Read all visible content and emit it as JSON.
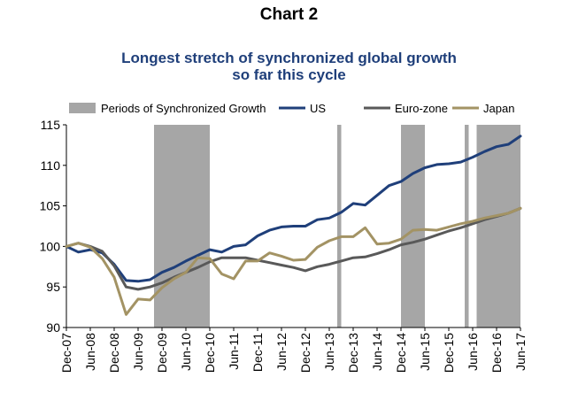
{
  "chart_label": "Chart 2",
  "chart_data": {
    "type": "line",
    "title": "Longest stretch of synchronized global growth",
    "subtitle": "so far this cycle",
    "xlabel": "",
    "ylabel": "",
    "ylim": [
      90,
      115
    ],
    "yticks": [
      90,
      95,
      100,
      105,
      110,
      115
    ],
    "grid": false,
    "legend_position": "top",
    "x_tick_labels": [
      "Dec-07",
      "Jun-08",
      "Dec-08",
      "Jun-09",
      "Dec-09",
      "Jun-10",
      "Dec-10",
      "Jun-11",
      "Dec-11",
      "Jun-12",
      "Dec-12",
      "Jun-13",
      "Dec-13",
      "Jun-14",
      "Dec-14",
      "Jun-15",
      "Dec-15",
      "Jun-16",
      "Dec-16",
      "Jun-17"
    ],
    "x": [
      "Dec-07",
      "Mar-08",
      "Jun-08",
      "Sep-08",
      "Dec-08",
      "Mar-09",
      "Jun-09",
      "Sep-09",
      "Dec-09",
      "Mar-10",
      "Jun-10",
      "Sep-10",
      "Dec-10",
      "Mar-11",
      "Jun-11",
      "Sep-11",
      "Dec-11",
      "Mar-12",
      "Jun-12",
      "Sep-12",
      "Dec-12",
      "Mar-13",
      "Jun-13",
      "Sep-13",
      "Dec-13",
      "Mar-14",
      "Jun-14",
      "Sep-14",
      "Dec-14",
      "Mar-15",
      "Jun-15",
      "Sep-15",
      "Dec-15",
      "Mar-16",
      "Jun-16",
      "Sep-16",
      "Dec-16",
      "Mar-17",
      "Jun-17"
    ],
    "shaded_periods": {
      "name": "Periods of Synchronized Growth",
      "color": "#a6a6a6",
      "ranges": [
        [
          "Oct-09",
          "Dec-10"
        ],
        [
          "Aug-13",
          "Sep-13"
        ],
        [
          "Dec-14",
          "Jun-15"
        ],
        [
          "Apr-16",
          "May-16"
        ],
        [
          "Jul-16",
          "Jun-17"
        ]
      ]
    },
    "series": [
      {
        "name": "US",
        "color": "#1f3f7a",
        "values": [
          100.0,
          99.3,
          99.6,
          99.2,
          97.8,
          95.8,
          95.7,
          95.9,
          96.8,
          97.4,
          98.2,
          98.9,
          99.6,
          99.3,
          100.0,
          100.2,
          101.3,
          102.0,
          102.4,
          102.5,
          102.5,
          103.3,
          103.5,
          104.2,
          105.3,
          105.1,
          106.3,
          107.5,
          108.0,
          109.0,
          109.7,
          110.1,
          110.2,
          110.4,
          111.0,
          111.7,
          112.3,
          112.6,
          113.6
        ]
      },
      {
        "name": "Euro-zone",
        "color": "#595959",
        "values": [
          100.0,
          100.4,
          100.0,
          99.4,
          97.6,
          95.0,
          94.7,
          95.0,
          95.5,
          96.2,
          96.8,
          97.4,
          98.1,
          98.6,
          98.6,
          98.6,
          98.3,
          98.0,
          97.7,
          97.4,
          97.0,
          97.5,
          97.8,
          98.2,
          98.6,
          98.7,
          99.1,
          99.6,
          100.2,
          100.5,
          100.9,
          101.4,
          101.9,
          102.3,
          102.8,
          103.3,
          103.7,
          104.1,
          104.7
        ]
      },
      {
        "name": "Japan",
        "color": "#a39364",
        "values": [
          100.0,
          100.4,
          99.9,
          98.5,
          96.2,
          91.6,
          93.5,
          93.4,
          94.9,
          96.0,
          96.8,
          98.6,
          98.5,
          96.6,
          96.0,
          98.2,
          98.2,
          99.2,
          98.8,
          98.3,
          98.4,
          99.9,
          100.7,
          101.2,
          101.2,
          102.3,
          100.3,
          100.4,
          100.9,
          102.0,
          102.1,
          102.0,
          102.4,
          102.8,
          103.1,
          103.5,
          103.8,
          104.1,
          104.7
        ]
      }
    ]
  }
}
